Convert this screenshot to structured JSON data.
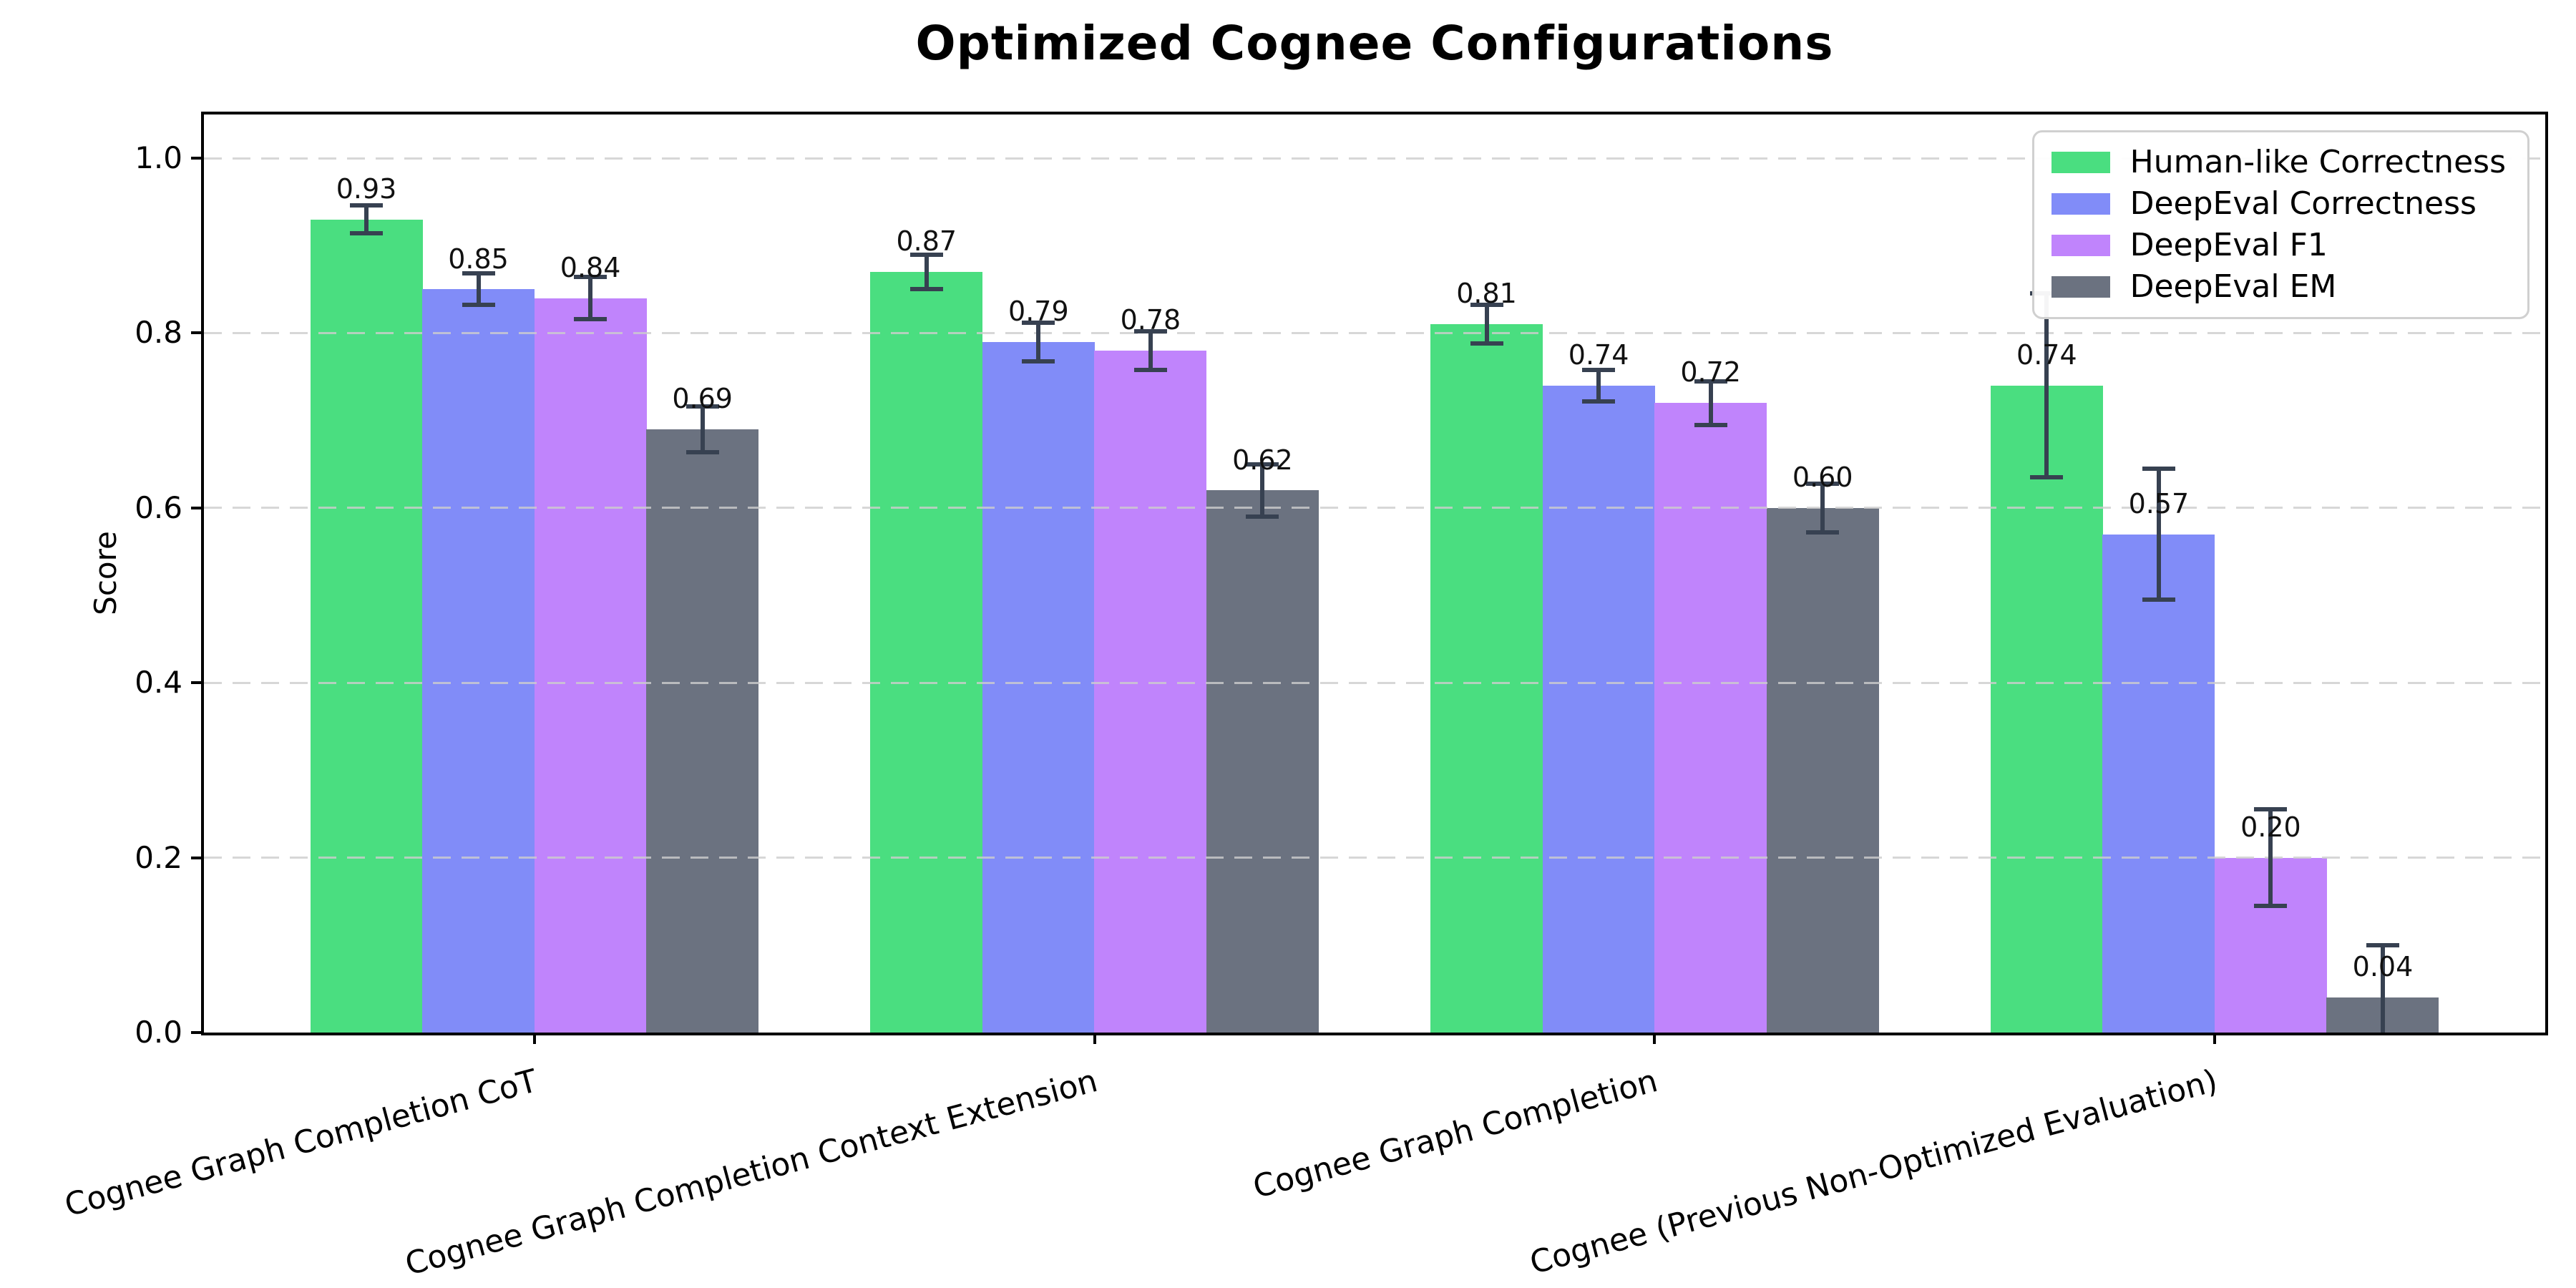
{
  "chart_data": {
    "type": "bar",
    "title": "Optimized Cognee Configurations",
    "xlabel": "",
    "ylabel": "Score",
    "categories": [
      "Cognee Graph Completion CoT",
      "Cognee Graph Completion Context Extension",
      "Cognee Graph Completion",
      "Cognee (Previous Non-Optimized Evaluation)"
    ],
    "series": [
      {
        "name": "Human-like Correctness",
        "color": "#4ade80",
        "values": [
          0.93,
          0.87,
          0.81,
          0.74
        ],
        "errors": [
          0.016,
          0.02,
          0.022,
          0.105
        ]
      },
      {
        "name": "DeepEval Correctness",
        "color": "#818cf8",
        "values": [
          0.85,
          0.79,
          0.74,
          0.57
        ],
        "errors": [
          0.018,
          0.022,
          0.018,
          0.075
        ]
      },
      {
        "name": "DeepEval F1",
        "color": "#c084fc",
        "values": [
          0.84,
          0.78,
          0.72,
          0.2
        ],
        "errors": [
          0.024,
          0.022,
          0.025,
          0.055
        ]
      },
      {
        "name": "DeepEval EM",
        "color": "#6b7280",
        "values": [
          0.69,
          0.62,
          0.6,
          0.04
        ],
        "errors": [
          0.026,
          0.03,
          0.028,
          0.06
        ]
      }
    ],
    "yticks": [
      "0.0",
      "0.2",
      "0.4",
      "0.6",
      "0.8",
      "1.0"
    ],
    "ytick_values": [
      0.0,
      0.2,
      0.4,
      0.6,
      0.8,
      1.0
    ],
    "ylim": [
      0,
      1.05
    ],
    "grid": "horizontal-dashed",
    "legend_position": "upper-right",
    "value_label_format": ".2f",
    "value_labels": [
      [
        "0.93",
        "0.87",
        "0.81",
        "0.74"
      ],
      [
        "0.85",
        "0.79",
        "0.74",
        "0.57"
      ],
      [
        "0.84",
        "0.78",
        "0.72",
        "0.20"
      ],
      [
        "0.69",
        "0.62",
        "0.60",
        "0.04"
      ]
    ]
  },
  "colors": {
    "error_bar": "#374151",
    "grid": "#cdcdcd",
    "spine": "#000000",
    "background": "#ffffff",
    "legend_border": "#d0d0d0"
  }
}
